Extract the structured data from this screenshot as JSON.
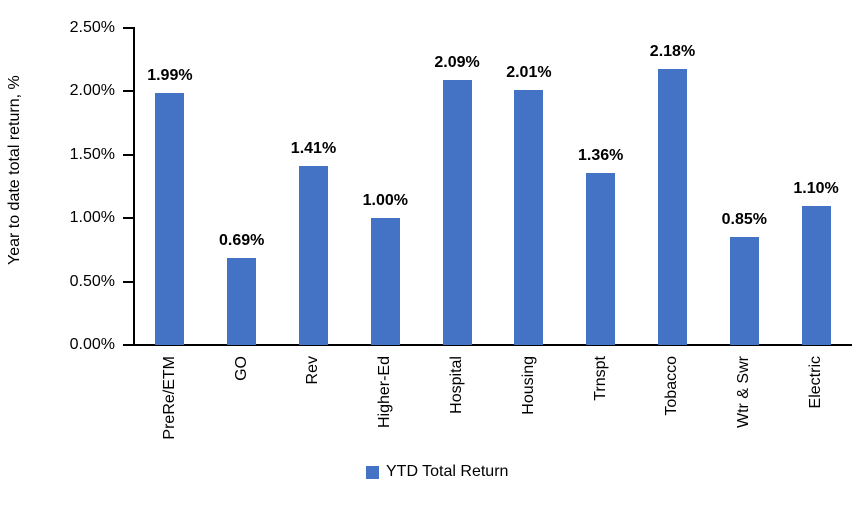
{
  "chart_data": {
    "type": "bar",
    "categories": [
      "PreRe/ETM",
      "GO",
      "Rev",
      "Higher-Ed",
      "Hospital",
      "Housing",
      "Trnspt",
      "Tobacco",
      "Wtr & Swr",
      "Electric"
    ],
    "values": [
      1.99,
      0.69,
      1.41,
      1.0,
      2.09,
      2.01,
      1.36,
      2.18,
      0.85,
      1.1
    ],
    "data_labels": [
      "1.99%",
      "0.69%",
      "1.41%",
      "1.00%",
      "2.09%",
      "2.01%",
      "1.36%",
      "2.18%",
      "0.85%",
      "1.10%"
    ],
    "title": "",
    "xlabel": "",
    "ylabel": "Year to date total return, %",
    "ylim": [
      0,
      2.5
    ],
    "ytick_values": [
      0,
      0.5,
      1.0,
      1.5,
      2.0,
      2.5
    ],
    "ytick_labels": [
      "0.00%",
      "0.50%",
      "1.00%",
      "1.50%",
      "2.00%",
      "2.50%"
    ],
    "grid": false,
    "legend_position": "bottom",
    "legend": [
      {
        "name": "YTD Total Return",
        "color": "#4472C4"
      }
    ],
    "bar_color": "#4472C4",
    "axis_color": "#000000",
    "background_color": "#FFFFFF"
  }
}
